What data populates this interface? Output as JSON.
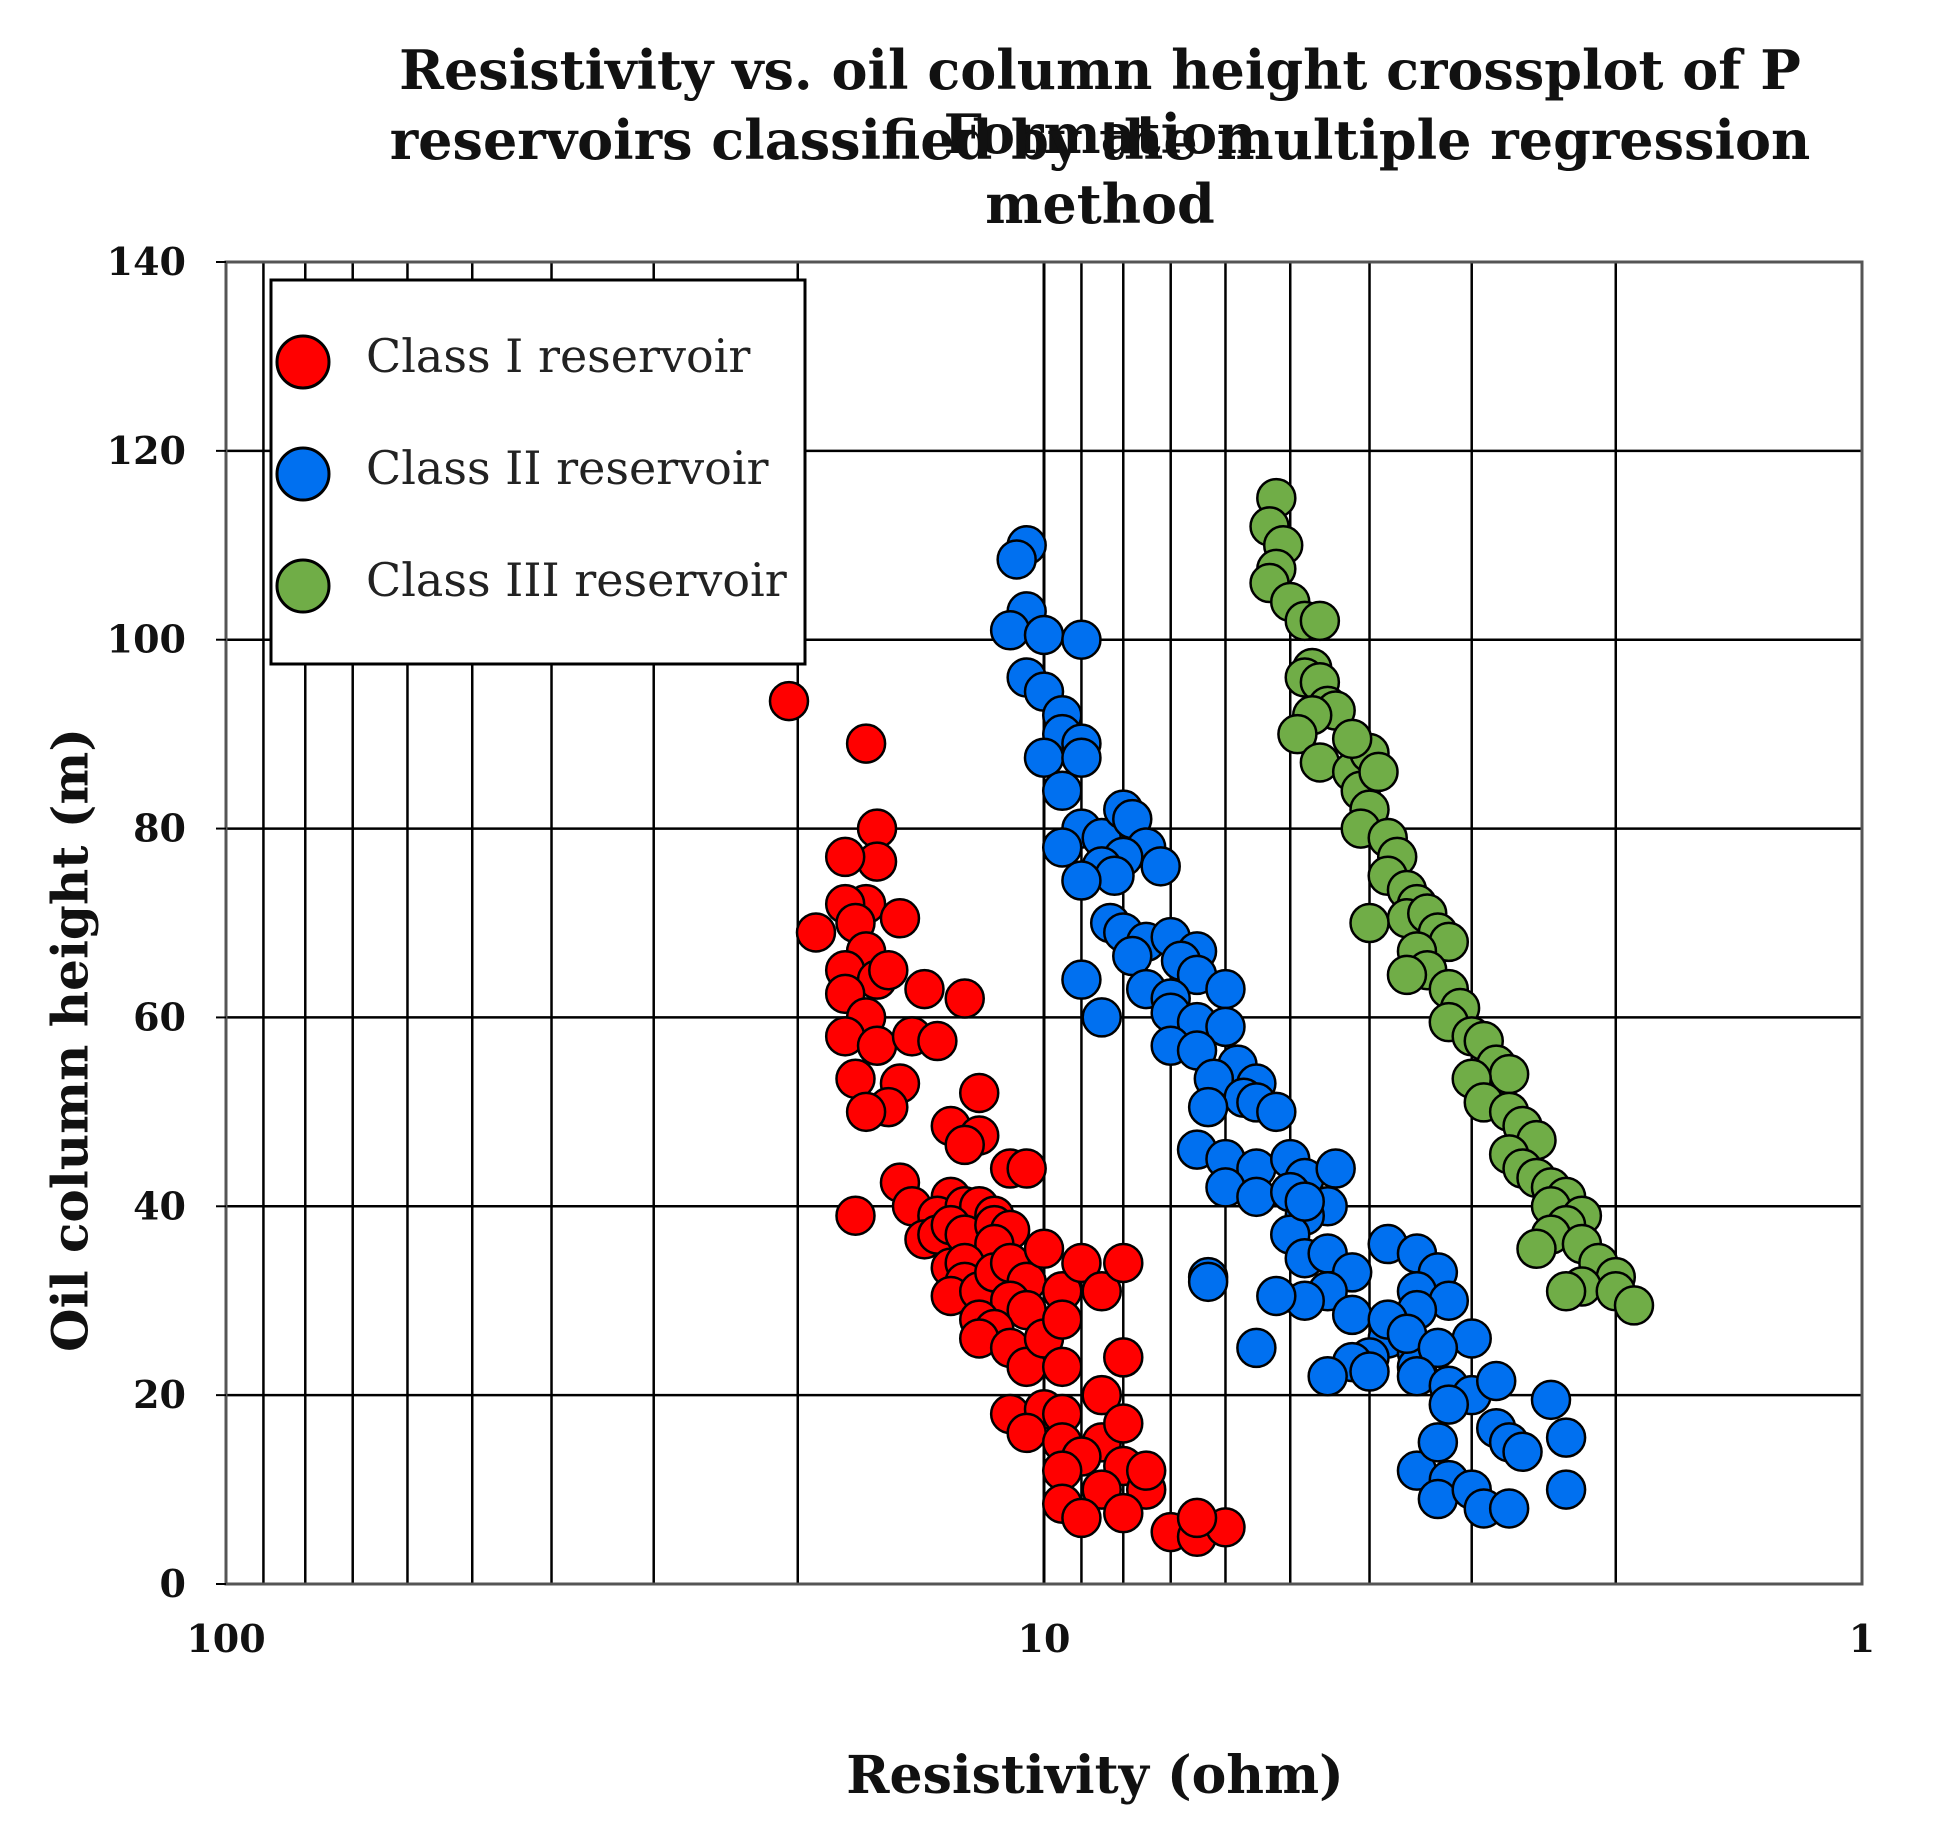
{
  "chart_data": {
    "type": "scatter",
    "title_lines": [
      "Resistivity vs. oil column height crossplot of P Formation",
      "reservoirs classified by the multiple regression method"
    ],
    "xlabel": "Resistivity (ohm)",
    "ylabel": "Oil column height (m)",
    "x_scale": "log",
    "x_reversed": true,
    "xlim": [
      100,
      1
    ],
    "ylim": [
      0,
      140
    ],
    "x_ticks": [
      {
        "value": 100,
        "label": "100"
      },
      {
        "value": 10,
        "label": "10"
      },
      {
        "value": 1,
        "label": "1"
      }
    ],
    "y_ticks": [
      0,
      20,
      40,
      60,
      80,
      100,
      120,
      140
    ],
    "y_tick_labels": [
      "0",
      "20",
      "40",
      "60",
      "80",
      "100",
      "120",
      "140"
    ],
    "grid": true,
    "legend_position": "top-left",
    "series": [
      {
        "name": "Class I reservoir",
        "color": "#ff0000",
        "points": [
          [
            20.5,
            93.5
          ],
          [
            16.5,
            89
          ],
          [
            16,
            80
          ],
          [
            16,
            76.5
          ],
          [
            17.5,
            77
          ],
          [
            16.5,
            72
          ],
          [
            17.5,
            72
          ],
          [
            19,
            69
          ],
          [
            17,
            70
          ],
          [
            16.5,
            67
          ],
          [
            15,
            70.5
          ],
          [
            17.5,
            65
          ],
          [
            16,
            64
          ],
          [
            15.5,
            65
          ],
          [
            17.5,
            62.5
          ],
          [
            14,
            63
          ],
          [
            12.5,
            62
          ],
          [
            16.5,
            60
          ],
          [
            17.5,
            58
          ],
          [
            16,
            57
          ],
          [
            14.5,
            58
          ],
          [
            13.5,
            57.5
          ],
          [
            17,
            53.5
          ],
          [
            15,
            53
          ],
          [
            15.5,
            50.5
          ],
          [
            16.5,
            50
          ],
          [
            12,
            52
          ],
          [
            13,
            48.5
          ],
          [
            12,
            47.5
          ],
          [
            12.5,
            46.5
          ],
          [
            11,
            44
          ],
          [
            10.5,
            44
          ],
          [
            15,
            42.5
          ],
          [
            14.5,
            40
          ],
          [
            17,
            39
          ],
          [
            13,
            41
          ],
          [
            13.5,
            39
          ],
          [
            12.5,
            40
          ],
          [
            12,
            40
          ],
          [
            11.5,
            39
          ],
          [
            14,
            36.5
          ],
          [
            13.5,
            37
          ],
          [
            13,
            38
          ],
          [
            12.5,
            37
          ],
          [
            11.5,
            38
          ],
          [
            11,
            37.5
          ],
          [
            11.5,
            36
          ],
          [
            13,
            33.5
          ],
          [
            12.5,
            34
          ],
          [
            12.5,
            32
          ],
          [
            13,
            30.5
          ],
          [
            12,
            31
          ],
          [
            11.5,
            33
          ],
          [
            11,
            34
          ],
          [
            10.5,
            32
          ],
          [
            10,
            35.5
          ],
          [
            11,
            30
          ],
          [
            10.5,
            29
          ],
          [
            9.5,
            31
          ],
          [
            12,
            28
          ],
          [
            11.5,
            27
          ],
          [
            12,
            26
          ],
          [
            11,
            25
          ],
          [
            10.5,
            23
          ],
          [
            10,
            26
          ],
          [
            9.5,
            28
          ],
          [
            9,
            34
          ],
          [
            8.5,
            31
          ],
          [
            8,
            34
          ],
          [
            9.5,
            23
          ],
          [
            11,
            18
          ],
          [
            10,
            18.5
          ],
          [
            10.5,
            16
          ],
          [
            9.5,
            18
          ],
          [
            9.5,
            15
          ],
          [
            8.5,
            20
          ],
          [
            8,
            24
          ],
          [
            8.5,
            15
          ],
          [
            9,
            13.5
          ],
          [
            9.5,
            12
          ],
          [
            8,
            17
          ],
          [
            8,
            12.5
          ],
          [
            7.5,
            10
          ],
          [
            8.5,
            10
          ],
          [
            9.5,
            8.5
          ],
          [
            9,
            7
          ],
          [
            8,
            7.5
          ],
          [
            7.5,
            12
          ],
          [
            7,
            5.5
          ],
          [
            6.5,
            5
          ],
          [
            6,
            6
          ],
          [
            6.5,
            7
          ]
        ]
      },
      {
        "name": "Class II reservoir",
        "color": "#0070f0",
        "points": [
          [
            10.5,
            110
          ],
          [
            10.8,
            108.5
          ],
          [
            10.5,
            103
          ],
          [
            11,
            101
          ],
          [
            10,
            100.5
          ],
          [
            9,
            100
          ],
          [
            10.5,
            96
          ],
          [
            10,
            94.5
          ],
          [
            9.5,
            92
          ],
          [
            9.5,
            90
          ],
          [
            9,
            89
          ],
          [
            10,
            87.5
          ],
          [
            9,
            87.5
          ],
          [
            9.5,
            84
          ],
          [
            9,
            80
          ],
          [
            9.5,
            78
          ],
          [
            8.5,
            79
          ],
          [
            8,
            82
          ],
          [
            7.8,
            81
          ],
          [
            7.5,
            78
          ],
          [
            8,
            77
          ],
          [
            8.5,
            76
          ],
          [
            8.2,
            75
          ],
          [
            7.2,
            76
          ],
          [
            9,
            74.5
          ],
          [
            8.3,
            70
          ],
          [
            8,
            69
          ],
          [
            7.5,
            68
          ],
          [
            7,
            68.5
          ],
          [
            6.5,
            67
          ],
          [
            7.8,
            66.5
          ],
          [
            6.8,
            66
          ],
          [
            6.5,
            64.5
          ],
          [
            6,
            63
          ],
          [
            9,
            64
          ],
          [
            7.5,
            63
          ],
          [
            7,
            62
          ],
          [
            7,
            60.5
          ],
          [
            8.5,
            60
          ],
          [
            6.5,
            59.5
          ],
          [
            6,
            59
          ],
          [
            7,
            57
          ],
          [
            6.5,
            56.5
          ],
          [
            5.8,
            55
          ],
          [
            5.5,
            53
          ],
          [
            6.2,
            53.5
          ],
          [
            5.7,
            51.5
          ],
          [
            5.5,
            51
          ],
          [
            6.3,
            50.5
          ],
          [
            5.2,
            50
          ],
          [
            6.5,
            46
          ],
          [
            6,
            45
          ],
          [
            5.5,
            44
          ],
          [
            5,
            45
          ],
          [
            4.8,
            43
          ],
          [
            6,
            42
          ],
          [
            5.5,
            41
          ],
          [
            5,
            41.5
          ],
          [
            4.5,
            40
          ],
          [
            4.8,
            39
          ],
          [
            5,
            37
          ],
          [
            4.8,
            34.5
          ],
          [
            4.5,
            35
          ],
          [
            6.3,
            32.5
          ],
          [
            4.2,
            33
          ],
          [
            4.5,
            31
          ],
          [
            4.8,
            30
          ],
          [
            4.2,
            28.5
          ],
          [
            3.8,
            26
          ],
          [
            4,
            24
          ],
          [
            3.5,
            24.5
          ],
          [
            3.5,
            23
          ],
          [
            4.2,
            23.5
          ],
          [
            4.5,
            22
          ],
          [
            4,
            22.5
          ],
          [
            4.4,
            44
          ],
          [
            4.8,
            40.5
          ],
          [
            3.8,
            36
          ],
          [
            3.5,
            35
          ],
          [
            3.3,
            33
          ],
          [
            3.5,
            31
          ],
          [
            3.2,
            30
          ],
          [
            3.5,
            29
          ],
          [
            3.8,
            28
          ],
          [
            3.6,
            26.5
          ],
          [
            3.0,
            26
          ],
          [
            3.3,
            25
          ],
          [
            3.5,
            22
          ],
          [
            3.2,
            21
          ],
          [
            3.0,
            20
          ],
          [
            3.2,
            19
          ],
          [
            5.5,
            25
          ],
          [
            5.2,
            30.5
          ],
          [
            6.3,
            32
          ],
          [
            2.8,
            21.5
          ],
          [
            2.8,
            16.5
          ],
          [
            2.7,
            15
          ],
          [
            2.6,
            14
          ],
          [
            2.4,
            19.5
          ],
          [
            2.3,
            15.5
          ],
          [
            3.5,
            12
          ],
          [
            3.3,
            15
          ],
          [
            3.2,
            11
          ],
          [
            3.3,
            9
          ],
          [
            3.0,
            10
          ],
          [
            2.9,
            8
          ],
          [
            2.7,
            8
          ],
          [
            2.3,
            10
          ]
        ]
      },
      {
        "name": "Class III reservoir",
        "color": "#70ad47",
        "points": [
          [
            5.2,
            115
          ],
          [
            5.3,
            112
          ],
          [
            5.1,
            110
          ],
          [
            5.2,
            107.5
          ],
          [
            5.3,
            106
          ],
          [
            5.0,
            104
          ],
          [
            4.8,
            102
          ],
          [
            4.6,
            102
          ],
          [
            4.7,
            97
          ],
          [
            4.8,
            96
          ],
          [
            4.6,
            95.5
          ],
          [
            4.5,
            93
          ],
          [
            4.4,
            92.5
          ],
          [
            4.7,
            92
          ],
          [
            4.9,
            90
          ],
          [
            4.6,
            87
          ],
          [
            4.2,
            86
          ],
          [
            4.1,
            84
          ],
          [
            4.0,
            88
          ],
          [
            4.2,
            89.5
          ],
          [
            3.9,
            86
          ],
          [
            4.0,
            82
          ],
          [
            4.1,
            80
          ],
          [
            3.8,
            79
          ],
          [
            3.7,
            77
          ],
          [
            3.8,
            75
          ],
          [
            3.6,
            73.5
          ],
          [
            3.5,
            72
          ],
          [
            3.6,
            70.5
          ],
          [
            4.0,
            70
          ],
          [
            3.4,
            71
          ],
          [
            3.3,
            69
          ],
          [
            3.2,
            68
          ],
          [
            3.5,
            67
          ],
          [
            3.4,
            65
          ],
          [
            3.6,
            64.5
          ],
          [
            3.2,
            63
          ],
          [
            3.1,
            61
          ],
          [
            3.2,
            59.5
          ],
          [
            3.0,
            58
          ],
          [
            2.9,
            57.5
          ],
          [
            2.8,
            55
          ],
          [
            2.7,
            54
          ],
          [
            3.0,
            53.5
          ],
          [
            2.9,
            51
          ],
          [
            2.7,
            50
          ],
          [
            2.6,
            48.5
          ],
          [
            2.5,
            47
          ],
          [
            2.7,
            45.5
          ],
          [
            2.6,
            44
          ],
          [
            2.5,
            43
          ],
          [
            2.4,
            42
          ],
          [
            2.3,
            41
          ],
          [
            2.4,
            40
          ],
          [
            2.2,
            39
          ],
          [
            2.3,
            38
          ],
          [
            2.4,
            37
          ],
          [
            2.2,
            36
          ],
          [
            2.5,
            35.5
          ],
          [
            2.1,
            34
          ],
          [
            2.0,
            32.5
          ],
          [
            2.2,
            31.5
          ],
          [
            2.0,
            31
          ],
          [
            1.9,
            29.5
          ],
          [
            2.3,
            31
          ]
        ]
      }
    ]
  }
}
